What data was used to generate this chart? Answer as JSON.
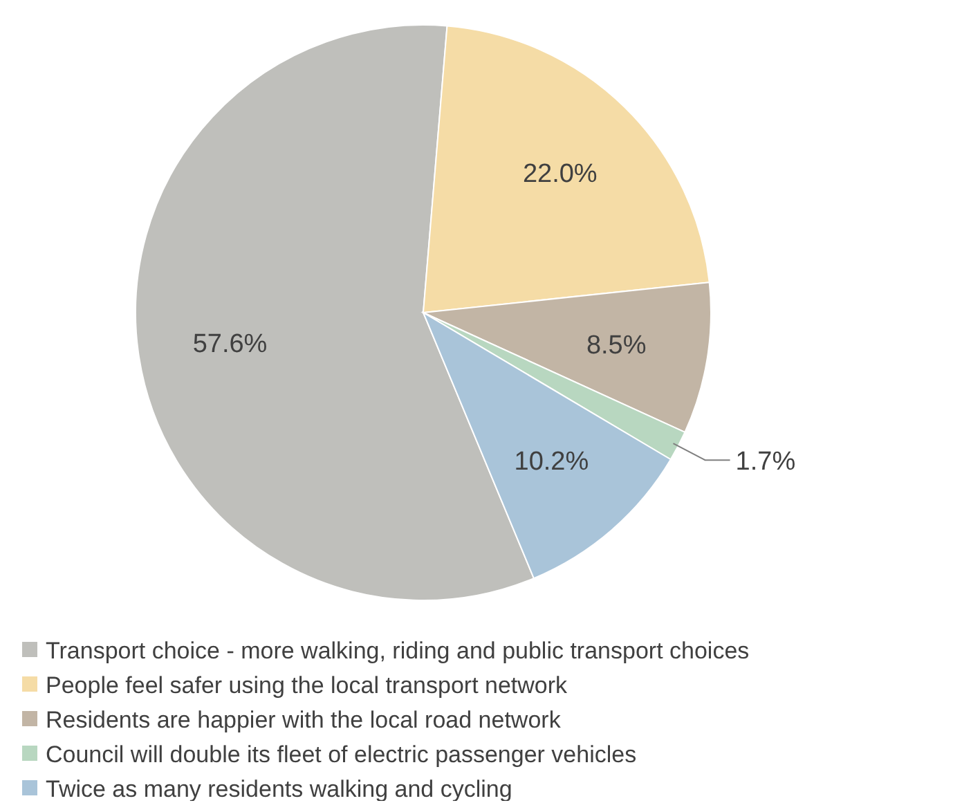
{
  "chart_data": {
    "type": "pie",
    "categories": [
      "Transport choice - more walking, riding and public transport choices",
      "People feel safer using the local transport network",
      "Residents are happier with the local road network",
      "Council will double its fleet of electric passenger vehicles",
      "Twice as many residents walking and cycling"
    ],
    "values": [
      57.6,
      22.0,
      8.5,
      1.7,
      10.2
    ],
    "colors": [
      "#bfbfbb",
      "#f5dca6",
      "#c2b5a5",
      "#b8d7c0",
      "#a9c4d9"
    ],
    "value_labels": [
      "57.6%",
      "22.0%",
      "8.5%",
      "1.7%",
      "10.2%"
    ],
    "legend": "bottom"
  }
}
